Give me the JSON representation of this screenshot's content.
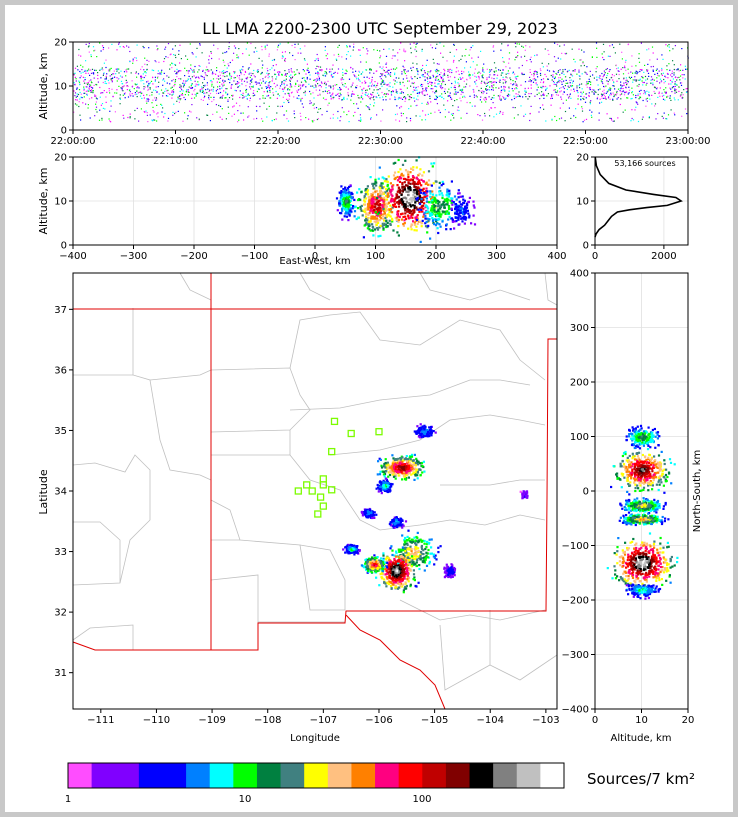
{
  "figure_title": "LL LMA 2200-2300 UTC September 29, 2023",
  "colors": {
    "frame_gray": "#c8c8c8",
    "state_border": "#e00000",
    "county_lines": "#c0c0c0",
    "station_marker": "#7cfc00"
  },
  "icons": {
    "station": "green-square-station-icon"
  },
  "chart_data": [
    {
      "id": "altitude-time",
      "type": "scatter",
      "title": "",
      "xlabel": "",
      "ylabel": "Altitude, km",
      "x_ticklabels": [
        "22:00:00",
        "22:10:00",
        "22:20:00",
        "22:30:00",
        "22:40:00",
        "22:50:00",
        "23:00:00"
      ],
      "xlim": [
        "22:00:00",
        "23:00:00"
      ],
      "y_ticks": [
        0,
        10,
        20
      ],
      "ylim": [
        0,
        20
      ],
      "source_band_km": [
        2,
        20
      ],
      "core_km": [
        7,
        14
      ],
      "grid": false
    },
    {
      "id": "altitude-eastwest",
      "type": "heatmap",
      "xlabel": "East-West, km",
      "ylabel": "Altitude, km",
      "x_ticks": [
        -400,
        -300,
        -200,
        -100,
        0,
        100,
        200,
        300,
        400
      ],
      "x_ticklabels": [
        "−400",
        "−300",
        "−200",
        "−100",
        "0",
        "100",
        "200",
        "300",
        "400"
      ],
      "xlim": [
        -400,
        400
      ],
      "y_ticks": [
        0,
        10,
        20
      ],
      "ylim": [
        0,
        20
      ],
      "grid": true,
      "clusters": [
        {
          "x": 50,
          "y": 10,
          "rx": 10,
          "ry": 2.5,
          "peak": 0.45
        },
        {
          "x": 100,
          "y": 9,
          "rx": 25,
          "ry": 5,
          "peak": 0.8
        },
        {
          "x": 155,
          "y": 11,
          "rx": 40,
          "ry": 6.5,
          "peak": 1.0
        },
        {
          "x": 205,
          "y": 9,
          "rx": 30,
          "ry": 4,
          "peak": 0.45
        },
        {
          "x": 240,
          "y": 8,
          "rx": 15,
          "ry": 3,
          "peak": 0.25
        }
      ]
    },
    {
      "id": "altitude-histogram",
      "type": "line",
      "annotation": "53,166 sources",
      "x_ticks": [
        0,
        2000
      ],
      "xlim": [
        0,
        2700
      ],
      "y_ticks": [
        0,
        10,
        20
      ],
      "ylim": [
        0,
        20
      ],
      "grid": true,
      "x": [
        0,
        30,
        120,
        280,
        380,
        480,
        650,
        1000,
        1500,
        2100,
        2500,
        2350,
        1700,
        900,
        400,
        150,
        40,
        5
      ],
      "y": [
        1.8,
        2.5,
        3.5,
        4.5,
        5.5,
        6.5,
        7.5,
        8.0,
        8.5,
        9.0,
        10.0,
        10.8,
        11.5,
        12.5,
        14.0,
        16.0,
        18.0,
        20.0
      ]
    },
    {
      "id": "plan-view-map",
      "type": "heatmap",
      "xlabel": "Longitude",
      "ylabel": "Latitude",
      "x_ticks": [
        -111,
        -110,
        -109,
        -108,
        -107,
        -106,
        -105,
        -104,
        -103
      ],
      "x_ticklabels": [
        "−111",
        "−110",
        "−109",
        "−108",
        "−107",
        "−106",
        "−105",
        "−104",
        "−103"
      ],
      "xlim": [
        -111.5,
        -102.8
      ],
      "y_ticks": [
        31,
        32,
        33,
        34,
        35,
        36,
        37
      ],
      "ylim": [
        30.4,
        37.6
      ],
      "grid": false,
      "stations": [
        [
          -106.8,
          35.15
        ],
        [
          -106.5,
          34.95
        ],
        [
          -106.0,
          34.98
        ],
        [
          -106.85,
          34.65
        ],
        [
          -107.0,
          34.2
        ],
        [
          -107.3,
          34.1
        ],
        [
          -107.0,
          34.1
        ],
        [
          -107.45,
          34.0
        ],
        [
          -107.2,
          34.0
        ],
        [
          -106.85,
          34.02
        ],
        [
          -107.05,
          33.9
        ],
        [
          -107.0,
          33.75
        ],
        [
          -107.1,
          33.62
        ]
      ],
      "clusters": [
        {
          "lon": -105.2,
          "lat": 35.0,
          "rx": 0.15,
          "ry": 0.08,
          "peak": 0.3
        },
        {
          "lon": -105.6,
          "lat": 34.4,
          "rx": 0.3,
          "ry": 0.15,
          "peak": 0.85
        },
        {
          "lon": -105.9,
          "lat": 34.1,
          "rx": 0.12,
          "ry": 0.08,
          "peak": 0.35
        },
        {
          "lon": -105.7,
          "lat": 33.5,
          "rx": 0.1,
          "ry": 0.07,
          "peak": 0.3
        },
        {
          "lon": -106.2,
          "lat": 33.65,
          "rx": 0.1,
          "ry": 0.06,
          "peak": 0.3
        },
        {
          "lon": -105.4,
          "lat": 33.0,
          "rx": 0.3,
          "ry": 0.25,
          "peak": 0.6
        },
        {
          "lon": -105.7,
          "lat": 32.7,
          "rx": 0.25,
          "ry": 0.25,
          "peak": 1.0
        },
        {
          "lon": -106.1,
          "lat": 32.8,
          "rx": 0.15,
          "ry": 0.1,
          "peak": 0.75
        },
        {
          "lon": -106.5,
          "lat": 33.05,
          "rx": 0.1,
          "ry": 0.06,
          "peak": 0.35
        },
        {
          "lon": -104.75,
          "lat": 32.7,
          "rx": 0.08,
          "ry": 0.1,
          "peak": 0.2
        },
        {
          "lon": -103.4,
          "lat": 33.95,
          "rx": 0.05,
          "ry": 0.05,
          "peak": 0.15
        }
      ]
    },
    {
      "id": "northsouth-altitude",
      "type": "heatmap",
      "xlabel": "Altitude, km",
      "ylabel": "North-South, km",
      "x_ticks": [
        0,
        10,
        20
      ],
      "xlim": [
        0,
        20
      ],
      "y_ticks": [
        -400,
        -300,
        -200,
        -100,
        0,
        100,
        200,
        300,
        400
      ],
      "y_ticklabels": [
        "−400",
        "−300",
        "−200",
        "−100",
        "0",
        "100",
        "200",
        "300",
        "400"
      ],
      "ylim": [
        -400,
        400
      ],
      "grid": true,
      "clusters": [
        {
          "x": 10,
          "y": 100,
          "rx": 3,
          "ry": 15,
          "peak": 0.45
        },
        {
          "x": 10,
          "y": 40,
          "rx": 4.5,
          "ry": 28,
          "peak": 0.9
        },
        {
          "x": 10,
          "y": -25,
          "rx": 3.5,
          "ry": 10,
          "peak": 0.55
        },
        {
          "x": 10,
          "y": -50,
          "rx": 3.5,
          "ry": 8,
          "peak": 0.6
        },
        {
          "x": 10,
          "y": -130,
          "rx": 5,
          "ry": 35,
          "peak": 1.0
        },
        {
          "x": 10,
          "y": -180,
          "rx": 3,
          "ry": 10,
          "peak": 0.35
        }
      ]
    }
  ],
  "colorbar": {
    "label": "Sources/7 km²",
    "tick_labels": [
      "1",
      "10",
      "100"
    ],
    "colors": [
      "#ff4dff",
      "#8000ff",
      "#8000ff",
      "#0000ff",
      "#0000ff",
      "#0080ff",
      "#00ffff",
      "#00ff00",
      "#008040",
      "#408080",
      "#ffff00",
      "#ffc080",
      "#ff8000",
      "#ff0080",
      "#ff0000",
      "#c00000",
      "#800000",
      "#000000",
      "#808080",
      "#c0c0c0",
      "#ffffff"
    ]
  }
}
